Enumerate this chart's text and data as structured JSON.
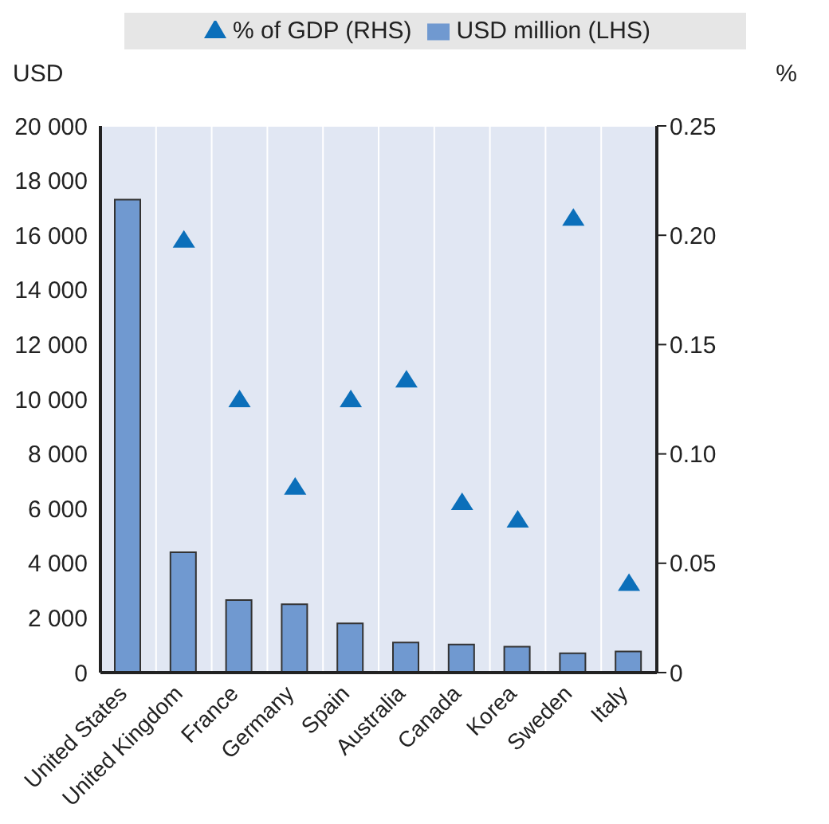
{
  "chart_data": {
    "type": "bar",
    "ylabel": "USD",
    "y2label": "%",
    "categories": [
      "United States",
      "United Kingdom",
      "France",
      "Germany",
      "Spain",
      "Australia",
      "Canada",
      "Korea",
      "Sweden",
      "Italy"
    ],
    "series": [
      {
        "name": "USD million (LHS)",
        "color": "#7099d0",
        "values": [
          17300,
          4400,
          2650,
          2500,
          1800,
          1100,
          1030,
          950,
          710,
          770
        ]
      },
      {
        "name": "% of GDP (RHS)",
        "type": "scatter",
        "axis": "y2",
        "marker": "triangle",
        "color": "#0b6fba",
        "values": [
          null,
          0.198,
          0.125,
          0.085,
          0.125,
          0.134,
          0.078,
          0.07,
          0.208,
          0.041
        ]
      }
    ],
    "ylim": [
      0,
      20000
    ],
    "yticks": [
      0,
      {
        "value": 2000,
        "label": "2 000"
      },
      {
        "value": 4000,
        "label": "4 000"
      },
      {
        "value": 6000,
        "label": "6 000"
      },
      {
        "value": 8000,
        "label": "8 000"
      },
      {
        "value": 10000,
        "label": "10 000"
      },
      {
        "value": 12000,
        "label": "12 000"
      },
      {
        "value": 14000,
        "label": "14 000"
      },
      {
        "value": 16000,
        "label": "16 000"
      },
      {
        "value": 18000,
        "label": "18 000"
      },
      {
        "value": 20000,
        "label": "20 000"
      }
    ],
    "y2lim": [
      0,
      0.25
    ],
    "y2ticks": [
      0,
      {
        "value": 0.05,
        "label": "0.05"
      },
      {
        "value": 0.1,
        "label": "0.10"
      },
      {
        "value": 0.15,
        "label": "0.15"
      },
      {
        "value": 0.2,
        "label": "0.20"
      },
      {
        "value": 0.25,
        "label": "0.25"
      }
    ],
    "grid": true,
    "legend": "top"
  }
}
